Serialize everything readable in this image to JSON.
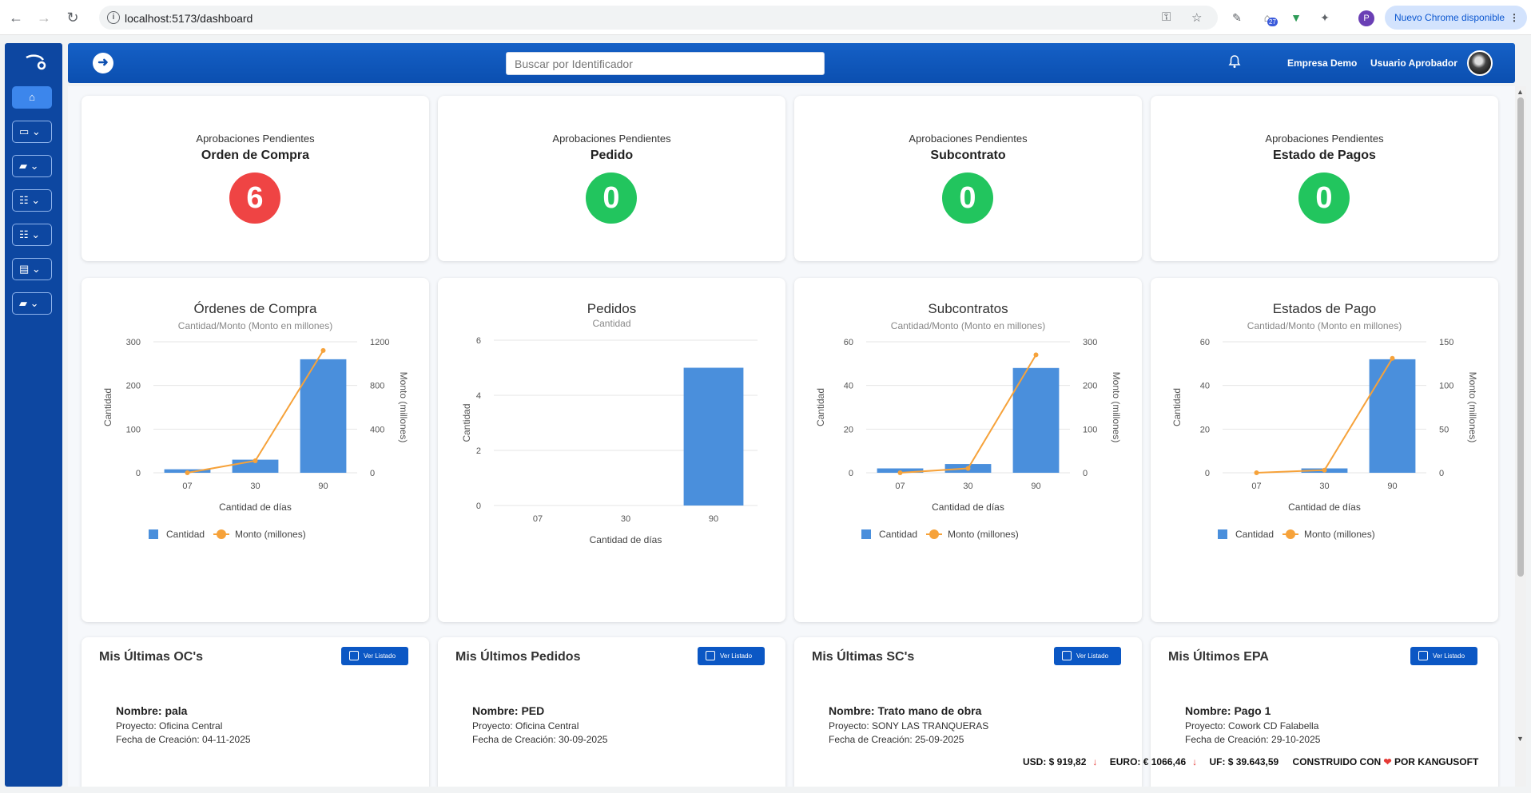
{
  "browser": {
    "url": "localhost:5173/dashboard",
    "profile_initial": "P",
    "update_label": "Nuevo Chrome disponible",
    "ext_badge": "27"
  },
  "header": {
    "search_placeholder": "Buscar por Identificador",
    "company": "Empresa Demo",
    "user": "Usuario Aprobador"
  },
  "kpis": [
    {
      "subtitle": "Aprobaciones Pendientes",
      "title": "Orden de Compra",
      "value": "6",
      "color": "#ef4444"
    },
    {
      "subtitle": "Aprobaciones Pendientes",
      "title": "Pedido",
      "value": "0",
      "color": "#22c55e"
    },
    {
      "subtitle": "Aprobaciones Pendientes",
      "title": "Subcontrato",
      "value": "0",
      "color": "#22c55e"
    },
    {
      "subtitle": "Aprobaciones Pendientes",
      "title": "Estado de Pagos",
      "value": "0",
      "color": "#22c55e"
    }
  ],
  "chart_data": [
    {
      "type": "bar",
      "title": "Órdenes de Compra",
      "subtitle": "Cantidad/Monto (Monto en millones)",
      "categories": [
        "07",
        "30",
        "90"
      ],
      "xlabel": "Cantidad de días",
      "ylabel": "Cantidad",
      "y2label": "Monto (millones)",
      "ylim": [
        0,
        300
      ],
      "y2lim": [
        0,
        1200
      ],
      "yticks": [
        0,
        100,
        200,
        300
      ],
      "y2ticks": [
        0,
        400,
        800,
        1200
      ],
      "series": [
        {
          "name": "Cantidad",
          "type": "bar",
          "axis": "left",
          "values": [
            8,
            30,
            260
          ]
        },
        {
          "name": "Monto (millones)",
          "type": "line",
          "axis": "right",
          "values": [
            0,
            110,
            1120
          ]
        }
      ],
      "legend": "bottom"
    },
    {
      "type": "bar",
      "title": "Pedidos",
      "subtitle": "Cantidad",
      "categories": [
        "07",
        "30",
        "90"
      ],
      "xlabel": "Cantidad de días",
      "ylabel": "Cantidad",
      "ylim": [
        0,
        6
      ],
      "yticks": [
        0,
        2,
        4,
        6
      ],
      "series": [
        {
          "name": "Cantidad",
          "type": "bar",
          "axis": "left",
          "values": [
            0,
            0,
            5
          ]
        }
      ],
      "legend": "none"
    },
    {
      "type": "bar",
      "title": "Subcontratos",
      "subtitle": "Cantidad/Monto (Monto en millones)",
      "categories": [
        "07",
        "30",
        "90"
      ],
      "xlabel": "Cantidad de días",
      "ylabel": "Cantidad",
      "y2label": "Monto (millones)",
      "ylim": [
        0,
        60
      ],
      "y2lim": [
        0,
        300
      ],
      "yticks": [
        0,
        20,
        40,
        60
      ],
      "y2ticks": [
        0,
        100,
        200,
        300
      ],
      "series": [
        {
          "name": "Cantidad",
          "type": "bar",
          "axis": "left",
          "values": [
            2,
            4,
            48
          ]
        },
        {
          "name": "Monto (millones)",
          "type": "line",
          "axis": "right",
          "values": [
            0,
            10,
            270
          ]
        }
      ],
      "legend": "bottom"
    },
    {
      "type": "bar",
      "title": "Estados de Pago",
      "subtitle": "Cantidad/Monto (Monto en millones)",
      "categories": [
        "07",
        "30",
        "90"
      ],
      "xlabel": "Cantidad de días",
      "ylabel": "Cantidad",
      "y2label": "Monto (millones)",
      "ylim": [
        0,
        60
      ],
      "y2lim": [
        0,
        150
      ],
      "yticks": [
        0,
        20,
        40,
        60
      ],
      "y2ticks": [
        0,
        50,
        100,
        150
      ],
      "series": [
        {
          "name": "Cantidad",
          "type": "bar",
          "axis": "left",
          "values": [
            0,
            2,
            52
          ]
        },
        {
          "name": "Monto (millones)",
          "type": "line",
          "axis": "right",
          "values": [
            0,
            3,
            131
          ]
        }
      ],
      "legend": "bottom"
    }
  ],
  "lists": [
    {
      "title": "Mis Últimas OC's",
      "button": "Ver Listado",
      "name": "Nombre: pala",
      "project": "Proyecto: Oficina Central",
      "date": "Fecha de Creación: 04-11-2025"
    },
    {
      "title": "Mis Últimos Pedidos",
      "button": "Ver Listado",
      "name": "Nombre: PED",
      "project": "Proyecto: Oficina Central",
      "date": "Fecha de Creación: 30-09-2025"
    },
    {
      "title": "Mis Últimas SC's",
      "button": "Ver Listado",
      "name": "Nombre: Trato mano de obra",
      "project": "Proyecto: SONY LAS TRANQUERAS",
      "date": "Fecha de Creación: 25-09-2025"
    },
    {
      "title": "Mis Últimos EPA",
      "button": "Ver Listado",
      "name": "Nombre: Pago 1",
      "project": "Proyecto: Cowork CD Falabella",
      "date": "Fecha de Creación: 29-10-2025"
    }
  ],
  "footer": {
    "usd": "USD: $ 919,82",
    "euro": "EURO: € 1066,46",
    "uf": "UF: $ 39.643,59",
    "built_prefix": "CONSTRUIDO CON",
    "built_suffix": "POR KANGUSOFT"
  },
  "colors": {
    "bar": "#4a8fdc",
    "line": "#f6a23a",
    "brand": "#0d47a1"
  }
}
